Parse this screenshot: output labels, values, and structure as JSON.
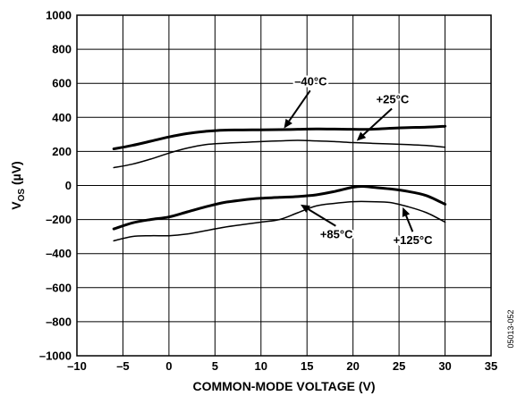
{
  "chart_data": {
    "type": "line",
    "xlabel": "COMMON-MODE VOLTAGE (V)",
    "ylabel": {
      "main": "V",
      "sub": "OS",
      "unit": " (µV)"
    },
    "xlim": [
      -10,
      35
    ],
    "ylim": [
      -1000,
      1000
    ],
    "xticks": [
      -10,
      -5,
      0,
      5,
      10,
      15,
      20,
      25,
      30,
      35
    ],
    "yticks": [
      1000,
      800,
      600,
      400,
      200,
      0,
      -200,
      -400,
      -600,
      -800,
      -1000
    ],
    "xtick_labels": [
      "–10",
      "–5",
      "0",
      "5",
      "10",
      "15",
      "20",
      "25",
      "30",
      "35"
    ],
    "ytick_labels": [
      "1000",
      "800",
      "600",
      "400",
      "200",
      "0",
      "–200",
      "–400",
      "–600",
      "–800",
      "–1000"
    ],
    "grid": true,
    "series": [
      {
        "name": "–40°C",
        "heavy": true,
        "x": [
          -6,
          -4,
          -2,
          0,
          2,
          4,
          6,
          8,
          10,
          12,
          14,
          16,
          18,
          20,
          22,
          24,
          26,
          28,
          30
        ],
        "y": [
          215,
          235,
          260,
          285,
          305,
          318,
          325,
          326,
          327,
          328,
          330,
          332,
          331,
          330,
          330,
          336,
          340,
          342,
          348
        ]
      },
      {
        "name": "+25°C",
        "heavy": false,
        "x": [
          -6,
          -4,
          -2,
          0,
          2,
          4,
          6,
          8,
          10,
          12,
          14,
          16,
          18,
          20,
          22,
          24,
          26,
          28,
          30
        ],
        "y": [
          105,
          125,
          155,
          190,
          220,
          240,
          248,
          253,
          258,
          262,
          265,
          262,
          258,
          252,
          248,
          244,
          240,
          235,
          225
        ]
      },
      {
        "name": "+85°C",
        "heavy": true,
        "x": [
          -6,
          -4,
          -2,
          0,
          2,
          4,
          6,
          8,
          10,
          12,
          14,
          16,
          18,
          20,
          21,
          22,
          24,
          26,
          28,
          30
        ],
        "y": [
          -255,
          -220,
          -200,
          -185,
          -155,
          -125,
          -100,
          -85,
          -75,
          -70,
          -65,
          -55,
          -35,
          -10,
          -5,
          -10,
          -20,
          -35,
          -60,
          -110
        ]
      },
      {
        "name": "+125°C",
        "heavy": false,
        "x": [
          -6,
          -4,
          -2,
          0,
          2,
          4,
          6,
          8,
          10,
          12,
          14,
          16,
          18,
          20,
          22,
          24,
          26,
          28,
          30
        ],
        "y": [
          -325,
          -300,
          -295,
          -295,
          -285,
          -265,
          -245,
          -230,
          -215,
          -200,
          -160,
          -120,
          -105,
          -95,
          -95,
          -100,
          -125,
          -160,
          -215
        ]
      }
    ],
    "annotations": [
      {
        "text": "–40°C",
        "series": "–40°C",
        "label_at": [
          15.4,
          589
        ],
        "arrow_to": [
          12.5,
          335
        ]
      },
      {
        "text": "+25°C",
        "series": "+25°C",
        "label_at": [
          24.3,
          483
        ],
        "arrow_to": [
          20.4,
          262
        ]
      },
      {
        "text": "+85°C",
        "series": "+85°C",
        "label_at": [
          18.2,
          -311
        ],
        "arrow_to": [
          14.3,
          -112
        ]
      },
      {
        "text": "+125°C",
        "series": "+125°C",
        "label_at": [
          26.5,
          -345
        ],
        "arrow_to": [
          25.4,
          -128
        ]
      }
    ],
    "figure_code": "05013-052"
  }
}
